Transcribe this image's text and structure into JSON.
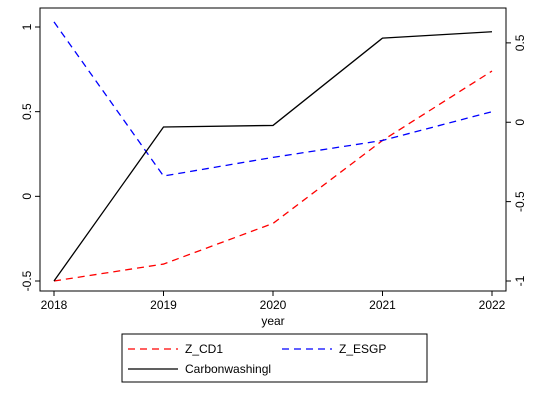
{
  "chart_data": {
    "type": "line",
    "xlabel": "year",
    "x": [
      2018,
      2019,
      2020,
      2021,
      2022
    ],
    "x_ticks": [
      "2018",
      "2019",
      "2020",
      "2021",
      "2022"
    ],
    "left_axis": {
      "ylim": [
        -0.5,
        1
      ],
      "ticks": [
        "-0.5",
        "0",
        "0.5",
        "1"
      ]
    },
    "right_axis": {
      "ylim": [
        -1,
        0.6
      ],
      "ticks": [
        "-1",
        "-0.5",
        "0",
        "0.5"
      ]
    },
    "series": [
      {
        "name": "Z_CD1",
        "axis": "left",
        "color": "#ff0000",
        "dash": "dashed",
        "values": [
          -0.5,
          -0.4,
          -0.16,
          0.33,
          0.74
        ]
      },
      {
        "name": "Z_ESGP",
        "axis": "left",
        "color": "#0000ff",
        "dash": "dashed",
        "values": [
          1.03,
          0.12,
          0.23,
          0.33,
          0.5
        ]
      },
      {
        "name": "Carbonwashingl",
        "axis": "right",
        "color": "#000000",
        "dash": "solid",
        "values": [
          -1.0,
          -0.03,
          -0.02,
          0.53,
          0.57
        ]
      }
    ],
    "legend": {
      "position": "bottom",
      "entries": [
        "Z_CD1",
        "Z_ESGP",
        "Carbonwashingl"
      ]
    },
    "grid": false
  }
}
